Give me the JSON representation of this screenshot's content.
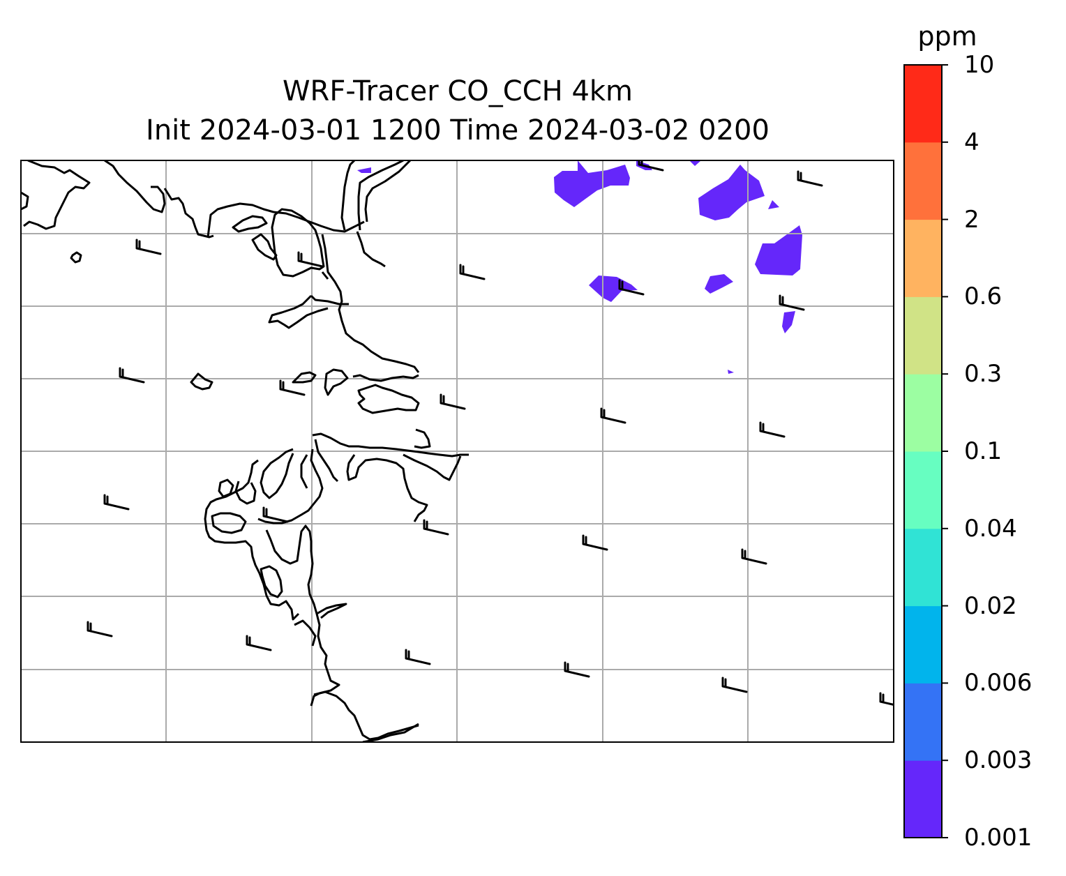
{
  "title": "WRF-Tracer CO_CCH 4km",
  "subtitle": "Init 2024-03-01 1200 Time 2024-03-02 0200",
  "colorbar": {
    "unit": "ppm",
    "levels": [
      "0.001",
      "0.003",
      "0.006",
      "0.02",
      "0.04",
      "0.1",
      "0.3",
      "0.6",
      "2",
      "4",
      "10"
    ],
    "colors": [
      "#6527fa",
      "#3473f5",
      "#01b4ec",
      "#30e3d5",
      "#67fec1",
      "#9cfea2",
      "#d0e386",
      "#ffb360",
      "#ff713b",
      "#ff2a18"
    ]
  },
  "map": {
    "field": "CO_CCH tracer concentration",
    "contour_color": "#6527fa",
    "coastline_color": "#000000",
    "gridline_color": "#aaaaaa",
    "wind_barbs": "present"
  }
}
